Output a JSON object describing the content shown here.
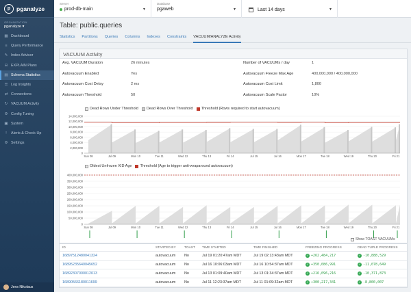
{
  "app": {
    "name": "pganalyze"
  },
  "sidebar": {
    "org_label": "ORGANIZATION",
    "org_name": "pganalyze",
    "items": [
      {
        "label": "Dashboard",
        "icon": "dashboard-icon"
      },
      {
        "label": "Query Performance",
        "icon": "query-icon"
      },
      {
        "label": "Index Advisor",
        "icon": "index-icon"
      },
      {
        "label": "EXPLAIN Plans",
        "icon": "explain-icon"
      },
      {
        "label": "Schema Statistics",
        "icon": "schema-icon",
        "active": true
      },
      {
        "label": "Log Insights",
        "icon": "log-icon"
      },
      {
        "label": "Connections",
        "icon": "connections-icon"
      },
      {
        "label": "VACUUM Activity",
        "icon": "vacuum-icon"
      },
      {
        "label": "Config Tuning",
        "icon": "config-icon"
      },
      {
        "label": "System",
        "icon": "system-icon"
      },
      {
        "label": "Alerts & Check-Up",
        "icon": "alerts-icon"
      },
      {
        "label": "Settings",
        "icon": "settings-icon"
      }
    ],
    "user": "Jens Nikolaus"
  },
  "topbar": {
    "server_label": "Server",
    "server_value": "prod-db-main",
    "database_label": "Database",
    "database_value": "pgaweb",
    "date_range": "Last 14 days"
  },
  "page": {
    "title": "Table: public.queries",
    "tabs": [
      "Statistics",
      "Partitions",
      "Queries",
      "Columns",
      "Indexes",
      "Constraints",
      "VACUUM/ANALYZE Activity"
    ],
    "active_tab": 6
  },
  "panel": {
    "title": "VACUUM Activity",
    "stats": [
      {
        "label": "Avg. VACUUM Duration",
        "value": "26 minutes"
      },
      {
        "label": "Number of VACUUMs / day",
        "value": "1"
      },
      {
        "label": "Autovacuum Enabled",
        "value": "Yes"
      },
      {
        "label": "Autovacuum Freeze Max Age",
        "value": "400,000,000 / 400,000,000"
      },
      {
        "label": "Autovacuum Cost Delay",
        "value": "2 ms"
      },
      {
        "label": "Autovacuum Cost Limit",
        "value": "1,800"
      },
      {
        "label": "Autovacuum Threshold",
        "value": "50"
      },
      {
        "label": "Autovacuum Scale Factor",
        "value": "10%"
      }
    ]
  },
  "chart_data": [
    {
      "type": "area",
      "legend": [
        "Dead Rows Under Threshold",
        "Dead Rows Over Threshold",
        "Threshold (Rows required to start autovacuum)"
      ],
      "categories": [
        "Sun 08",
        "Jul 09",
        "Mon 10",
        "Tue 11",
        "Wed 12",
        "Thu 13",
        "Fri 14",
        "Jul 15",
        "Jul 16",
        "Mon 17",
        "Tue 18",
        "Wed 19",
        "Thu 20",
        "Fri 21"
      ],
      "yticks": [
        "0",
        "2,000,000",
        "4,000,000",
        "6,000,000",
        "8,000,000",
        "10,000,000",
        "12,000,000",
        "14,000,000"
      ],
      "ylim": [
        0,
        14000000
      ],
      "series": [
        {
          "name": "Dead Rows Under Threshold",
          "values": [
            11000000,
            9000000,
            8500000,
            9000000,
            8800000,
            9500000,
            9200000,
            9200000,
            10800000,
            9900000,
            8800000,
            10000000,
            9800000,
            11000000
          ]
        },
        {
          "name": "Threshold (Rows required to start autovacuum)",
          "values": [
            11700000,
            11500000,
            11500000,
            11600000,
            11600000,
            11650000,
            11700000,
            11700000,
            11650000,
            11700000,
            11500000,
            11600000,
            11600000,
            11600000
          ]
        }
      ],
      "colors": {
        "under": "#d9d9d9",
        "over": "#c8c8c8",
        "threshold": "#c0392b"
      }
    },
    {
      "type": "area",
      "legend": [
        "Oldest Unfrozen XID Age",
        "Threshold (Age to trigger anti-wraparound autovacuum)"
      ],
      "categories": [
        "Sun 08",
        "Jul 09",
        "Mon 10",
        "Tue 11",
        "Wed 12",
        "Thu 13",
        "Fri 14",
        "Jul 15",
        "Jul 16",
        "Mon 17",
        "Tue 18",
        "Wed 19",
        "Thu 20",
        "Fri 21"
      ],
      "yticks": [
        "0",
        "50,000,000",
        "100,000,000",
        "150,000,000",
        "200,000,000",
        "250,000,000",
        "300,000,000",
        "350,000,000",
        "400,000,000"
      ],
      "ylim": [
        0,
        400000000
      ],
      "series": [
        {
          "name": "Oldest Unfrozen XID Age",
          "values": [
            110000000,
            150000000,
            150000000,
            140000000,
            155000000,
            140000000,
            140000000,
            150000000,
            155000000,
            155000000,
            160000000,
            160000000,
            155000000,
            160000000
          ]
        },
        {
          "name": "Threshold (Age to trigger anti-wraparound autovacuum)",
          "values": [
            400000000,
            400000000,
            400000000,
            400000000,
            400000000,
            400000000,
            400000000,
            400000000,
            400000000,
            400000000,
            400000000,
            400000000,
            400000000,
            400000000
          ]
        }
      ],
      "colors": {
        "age": "#d9d9d9",
        "threshold": "#c0392b",
        "vacuum_marker": "#2f9d48"
      }
    }
  ],
  "table": {
    "toast_label": "Show TOAST VACUUMs",
    "headers": [
      "ID",
      "Started By",
      "Toast",
      "Time Started",
      "Time Finished",
      "Freezing Progress",
      "Dead Tuple Progress"
    ],
    "rows": [
      {
        "id": "16897512480041324",
        "by": "autovacuum",
        "toast": "No",
        "started": "Jul 19 01:20:47am MDT",
        "finished": "Jul 19 02:13:43am MDT",
        "freezing": "+262,484,217",
        "dead": "-10,888,529"
      },
      {
        "id": "16895235640045652",
        "by": "autovacuum",
        "toast": "No",
        "started": "Jul 16 10:06:03am MDT",
        "finished": "Jul 16 10:54:37am MDT",
        "freezing": "+350,086,991",
        "dead": "-11,078,649"
      },
      {
        "id": "16892307000012013",
        "by": "autovacuum",
        "toast": "No",
        "started": "Jul 13 01:09:40am MDT",
        "finished": "Jul 13 01:34:37am MDT",
        "freezing": "+216,096,216",
        "dead": "-10,371,873"
      },
      {
        "id": "16890566180011699",
        "by": "autovacuum",
        "toast": "No",
        "started": "Jul 11 12:23:37am MDT",
        "finished": "Jul 11 01:09:32am MDT",
        "freezing": "+300,217,341",
        "dead": "-8,800,007"
      }
    ]
  }
}
